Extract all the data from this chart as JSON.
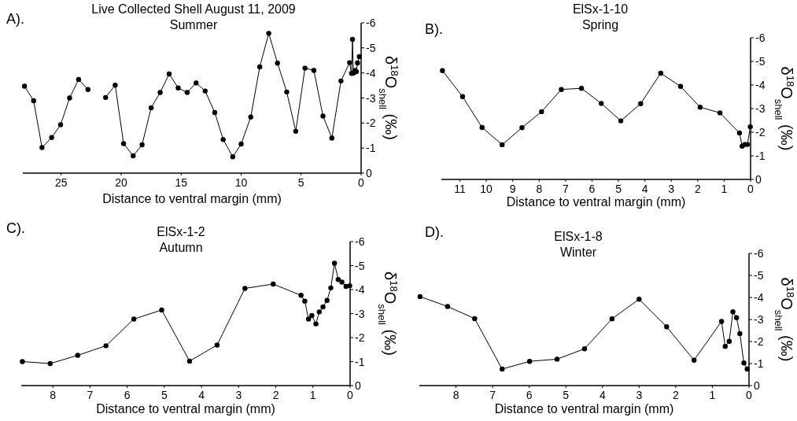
{
  "chart_data": [
    {
      "type": "line",
      "title": "Live Collected Shell August 11, 2009",
      "subtitle": "Summer",
      "annotations": [
        "A)."
      ],
      "xlabel": "Distance to ventral margin (mm)",
      "ylabel": "δ$^{18}$O$_{shell}$ (‰)",
      "marker": "circle",
      "line_style": "solid",
      "x": [
        28.06,
        27.3,
        26.6,
        25.8,
        25.05,
        24.3,
        23.55,
        22.77,
        22.0,
        21.3,
        20.5,
        19.8,
        19.0,
        18.26,
        17.5,
        16.75,
        16.0,
        15.25,
        14.5,
        13.75,
        13.0,
        12.2,
        11.5,
        10.7,
        10.0,
        9.2,
        8.45,
        7.7,
        6.97,
        6.2,
        5.45,
        4.68,
        3.94,
        3.18,
        2.44,
        1.68,
        0.96,
        0.8,
        0.72,
        0.65,
        0.5,
        0.4,
        0.3,
        0.15
      ],
      "series": [
        {
          "color": "#000000",
          "values": [
            -3.47,
            -2.89,
            -1.02,
            -1.42,
            -1.93,
            -3.0,
            -3.74,
            -3.34,
            null,
            -3.02,
            -3.51,
            -1.18,
            -0.69,
            -1.13,
            -2.61,
            -3.22,
            -3.96,
            -3.4,
            -3.22,
            -3.6,
            -3.28,
            -2.42,
            -1.34,
            -0.65,
            -1.16,
            -2.24,
            -4.24,
            -5.58,
            -4.39,
            -3.24,
            -1.67,
            -4.19,
            -4.1,
            -2.28,
            -1.4,
            -3.68,
            -4.41,
            -3.98,
            -5.34,
            -3.99,
            -4.1,
            -4.05,
            -4.4,
            -4.65
          ]
        }
      ],
      "xlim": [
        28.2,
        0
      ],
      "xticks": [
        25,
        20,
        15,
        10,
        5,
        0
      ],
      "ylim": [
        0,
        -6
      ],
      "yticks": [
        -6,
        -5,
        -4,
        -3,
        -2,
        -1,
        0
      ],
      "grid": false
    },
    {
      "type": "line",
      "title": "ElSx-1-10",
      "subtitle": "Spring",
      "annotations": [
        "B)."
      ],
      "xlabel": "Distance to ventral margin (mm)",
      "ylabel": "δ$^{18}$O$_{shell}$ (‰)",
      "marker": "circle",
      "line_style": "solid",
      "x": [
        11.66,
        10.9,
        10.16,
        9.4,
        8.65,
        7.91,
        7.16,
        6.4,
        5.65,
        4.91,
        4.16,
        3.4,
        2.65,
        1.91,
        1.16,
        0.42,
        0.32,
        0.22,
        0.12,
        0.01
      ],
      "series": [
        {
          "color": "#000000",
          "values": [
            -4.61,
            -3.51,
            -2.2,
            -1.47,
            -2.19,
            -2.87,
            -3.81,
            -3.86,
            -3.22,
            -2.48,
            -3.21,
            -4.5,
            -3.94,
            -3.06,
            -2.82,
            -1.97,
            -1.41,
            -1.48,
            -1.48,
            -2.23
          ]
        }
      ],
      "xlim": [
        11.7,
        0
      ],
      "xticks": [
        11,
        10,
        9,
        8,
        7,
        6,
        5,
        4,
        3,
        2,
        1,
        0
      ],
      "ylim": [
        0,
        -6
      ],
      "yticks": [
        -6,
        -5,
        -4,
        -3,
        -2,
        -1,
        0
      ],
      "grid": false
    },
    {
      "type": "line",
      "title": "ElSx-1-2",
      "subtitle": "Autumn",
      "annotations": [
        "C)."
      ],
      "xlabel": "Distance to ventral margin (mm)",
      "ylabel": "δ$^{18}$O$_{shell}$ (‰)",
      "marker": "circle",
      "line_style": "solid",
      "x": [
        8.82,
        8.07,
        7.33,
        6.57,
        5.82,
        5.07,
        4.32,
        3.58,
        2.83,
        2.07,
        1.32,
        1.22,
        1.12,
        1.03,
        0.92,
        0.83,
        0.73,
        0.62,
        0.52,
        0.42,
        0.32,
        0.22,
        0.11,
        0.01
      ],
      "series": [
        {
          "color": "#000000",
          "values": [
            -1.0,
            -0.92,
            -1.26,
            -1.66,
            -2.77,
            -3.15,
            -1.02,
            -1.69,
            -4.05,
            -4.23,
            -3.76,
            -3.52,
            -2.77,
            -2.92,
            -2.57,
            -3.07,
            -3.28,
            -3.55,
            -4.07,
            -5.1,
            -4.42,
            -4.31,
            -4.13,
            -4.16
          ]
        }
      ],
      "xlim": [
        8.85,
        0
      ],
      "xticks": [
        8,
        7,
        6,
        5,
        4,
        3,
        2,
        1,
        0
      ],
      "ylim": [
        0,
        -6
      ],
      "yticks": [
        -6,
        -5,
        -4,
        -3,
        -2,
        -1,
        0
      ],
      "grid": false
    },
    {
      "type": "line",
      "title": "ElSx-1-8",
      "subtitle": "Winter",
      "annotations": [
        "D)."
      ],
      "xlabel": "Distance to ventral margin (mm)",
      "ylabel": "δ$^{18}$O$_{shell}$ (‰)",
      "marker": "circle",
      "line_style": "solid",
      "x": [
        8.98,
        8.23,
        7.49,
        6.74,
        5.99,
        5.24,
        4.49,
        3.74,
        3.0,
        2.25,
        1.5,
        0.75,
        0.65,
        0.54,
        0.44,
        0.34,
        0.25,
        0.14,
        0.05
      ],
      "series": [
        {
          "color": "#000000",
          "values": [
            -4.04,
            -3.59,
            -3.04,
            -0.75,
            -1.1,
            -1.2,
            -1.67,
            -3.03,
            -3.92,
            -2.67,
            -1.15,
            -2.91,
            -1.78,
            -2.01,
            -3.35,
            -3.08,
            -2.36,
            -1.03,
            -0.75
          ]
        }
      ],
      "xlim": [
        9.0,
        0
      ],
      "xticks": [
        8,
        7,
        6,
        5,
        4,
        3,
        2,
        1,
        0
      ],
      "ylim": [
        0,
        -6
      ],
      "yticks": [
        -6,
        -5,
        -4,
        -3,
        -2,
        -1,
        0
      ],
      "grid": false
    }
  ]
}
